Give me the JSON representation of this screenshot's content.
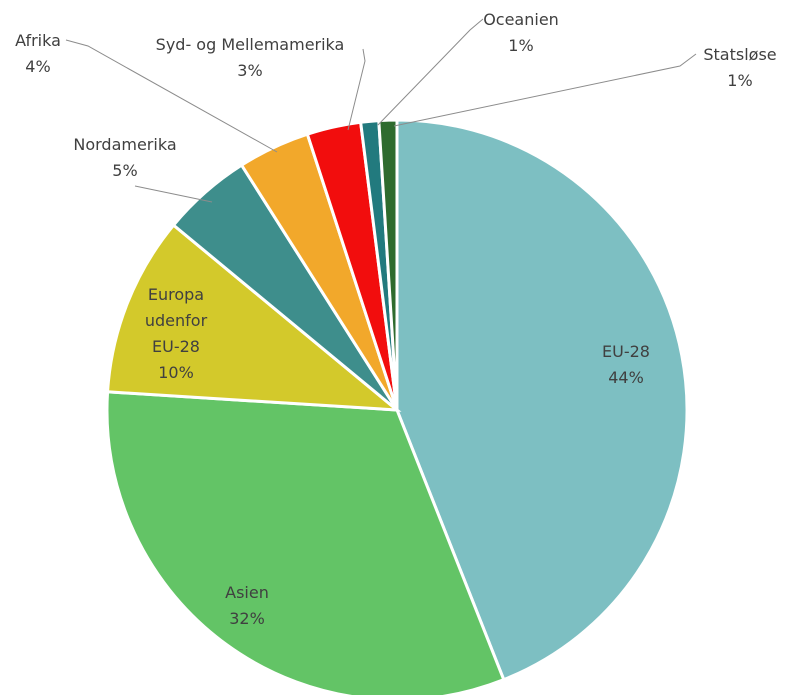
{
  "chart_data": {
    "type": "pie",
    "title": "",
    "slices": [
      {
        "name": "EU-28",
        "value": 44,
        "label": "44%",
        "color": "#7DBFC2"
      },
      {
        "name": "Asien",
        "value": 32,
        "label": "32%",
        "color": "#63C466"
      },
      {
        "name": "Europa udenfor EU-28",
        "name_lines": [
          "Europa",
          "udenfor",
          "EU-28"
        ],
        "value": 10,
        "label": "10%",
        "color": "#D3C92B"
      },
      {
        "name": "Nordamerika",
        "value": 5,
        "label": "5%",
        "color": "#3E8E8C"
      },
      {
        "name": "Afrika",
        "value": 4,
        "label": "4%",
        "color": "#F2A82B"
      },
      {
        "name": "Syd- og Mellemamerika",
        "value": 3,
        "label": "3%",
        "color": "#F20D0D"
      },
      {
        "name": "Oceanien",
        "value": 1,
        "label": "1%",
        "color": "#227A7E"
      },
      {
        "name": "Statsløse",
        "value": 1,
        "label": "1%",
        "color": "#2E6B2E"
      }
    ],
    "legend": "none"
  }
}
